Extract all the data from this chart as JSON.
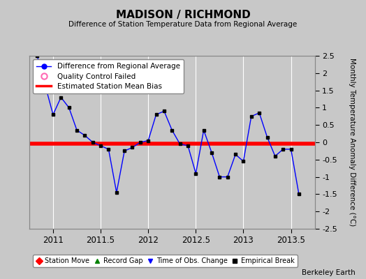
{
  "title": "MADISON / RICHMOND",
  "subtitle": "Difference of Station Temperature Data from Regional Average",
  "ylabel": "Monthly Temperature Anomaly Difference (°C)",
  "credit": "Berkeley Earth",
  "xlim": [
    2010.75,
    2013.75
  ],
  "ylim": [
    -2.5,
    2.5
  ],
  "xticks": [
    2011,
    2011.5,
    2012,
    2012.5,
    2013,
    2013.5
  ],
  "yticks": [
    -2.5,
    -2,
    -1.5,
    -1,
    -0.5,
    0,
    0.5,
    1,
    1.5,
    2,
    2.5
  ],
  "bias_value": -0.05,
  "x_data": [
    2010.833,
    2011.0,
    2011.083,
    2011.167,
    2011.25,
    2011.333,
    2011.417,
    2011.5,
    2011.583,
    2011.667,
    2011.75,
    2011.833,
    2011.917,
    2012.0,
    2012.083,
    2012.167,
    2012.25,
    2012.333,
    2012.417,
    2012.5,
    2012.583,
    2012.667,
    2012.75,
    2012.833,
    2012.917,
    2013.0,
    2013.083,
    2013.167,
    2013.25,
    2013.333,
    2013.417,
    2013.5,
    2013.583
  ],
  "y_data": [
    2.5,
    0.8,
    1.3,
    1.0,
    0.35,
    0.2,
    0.0,
    -0.1,
    -0.2,
    -1.45,
    -0.25,
    -0.15,
    0.0,
    0.05,
    0.8,
    0.9,
    0.35,
    -0.05,
    -0.1,
    -0.9,
    0.35,
    -0.3,
    -1.0,
    -1.0,
    -0.35,
    -0.55,
    0.75,
    0.85,
    0.15,
    -0.4,
    -0.2,
    -0.2,
    -1.5
  ],
  "line_color": "#0000FF",
  "marker_color": "#000000",
  "bias_color": "#FF0000",
  "bg_color": "#C8C8C8",
  "plot_bg_color": "#C8C8C8",
  "grid_color": "#FFFFFF"
}
